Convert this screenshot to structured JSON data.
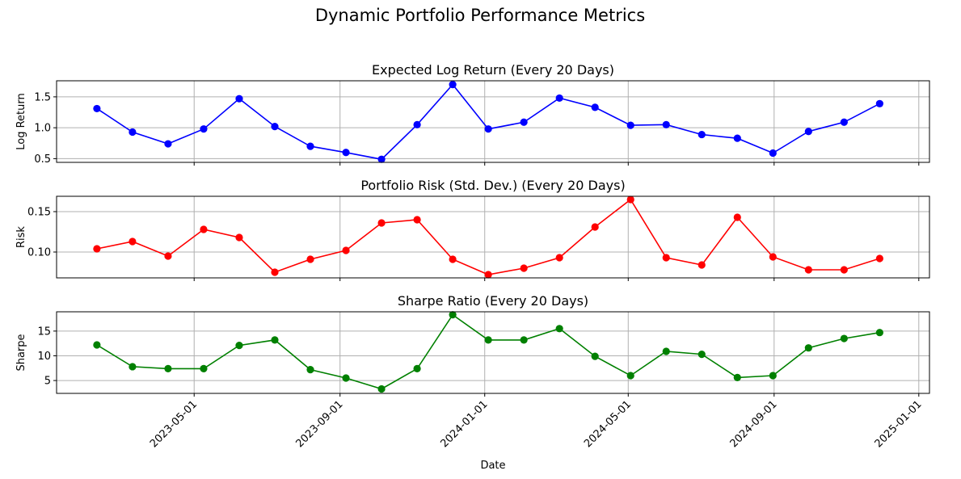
{
  "chart_data": {
    "title": "Dynamic Portfolio Performance Metrics",
    "xlabel": "Date",
    "x_ticks": [
      "2023-05-01",
      "2023-09-01",
      "2024-01-01",
      "2024-05-01",
      "2024-09-01",
      "2025-01-01"
    ],
    "x_range": [
      "2023-01-05",
      "2025-01-10"
    ],
    "dates": [
      "2023-02-08",
      "2023-03-10",
      "2023-04-09",
      "2023-05-09",
      "2023-06-08",
      "2023-07-08",
      "2023-08-07",
      "2023-09-06",
      "2023-10-06",
      "2023-11-05",
      "2023-12-05",
      "2024-01-04",
      "2024-02-03",
      "2024-03-04",
      "2024-04-03",
      "2024-05-03",
      "2024-06-02",
      "2024-07-02",
      "2024-08-01",
      "2024-08-31",
      "2024-09-30",
      "2024-10-30",
      "2024-11-29"
    ],
    "subplots": [
      {
        "type": "line",
        "title": "Expected Log Return (Every 20 Days)",
        "ylabel": "Log Return",
        "color": "#0000ff",
        "ylim": [
          0.44,
          1.76
        ],
        "yticks": [
          0.5,
          1.0,
          1.5
        ],
        "ytick_labels": [
          "0.5",
          "1.0",
          "1.5"
        ],
        "values": [
          1.31,
          0.93,
          0.74,
          0.98,
          1.47,
          1.02,
          0.7,
          0.6,
          0.49,
          1.05,
          1.7,
          0.98,
          1.09,
          1.48,
          1.33,
          1.04,
          1.05,
          0.89,
          0.83,
          0.59,
          0.94,
          1.09,
          1.39
        ]
      },
      {
        "type": "line",
        "title": "Portfolio Risk (Std. Dev.) (Every 20 Days)",
        "ylabel": "Risk",
        "color": "#ff0000",
        "ylim": [
          0.068,
          0.169
        ],
        "yticks": [
          0.1,
          0.15
        ],
        "ytick_labels": [
          "0.10",
          "0.15"
        ],
        "values": [
          0.104,
          0.113,
          0.095,
          0.128,
          0.118,
          0.075,
          0.091,
          0.102,
          0.136,
          0.14,
          0.091,
          0.072,
          0.08,
          0.093,
          0.131,
          0.165,
          0.093,
          0.084,
          0.143,
          0.094,
          0.078,
          0.078,
          0.092
        ]
      },
      {
        "type": "line",
        "title": "Sharpe Ratio (Every 20 Days)",
        "ylabel": "Sharpe",
        "color": "#008000",
        "ylim": [
          2.4,
          18.9
        ],
        "yticks": [
          5,
          10,
          15
        ],
        "ytick_labels": [
          "5",
          "10",
          "15"
        ],
        "values": [
          12.2,
          7.8,
          7.4,
          7.4,
          12.1,
          13.2,
          7.2,
          5.5,
          3.3,
          7.4,
          18.3,
          13.2,
          13.2,
          15.5,
          9.9,
          6.0,
          10.9,
          10.3,
          5.6,
          6.0,
          11.6,
          13.5,
          14.7
        ]
      }
    ]
  }
}
